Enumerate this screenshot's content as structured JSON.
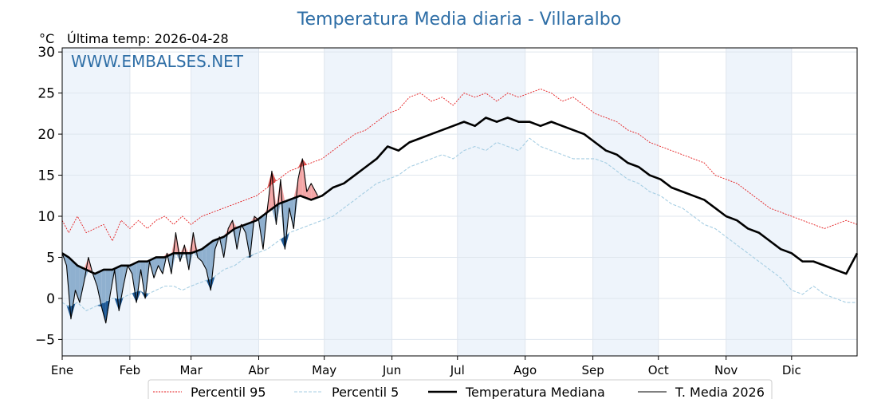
{
  "chart_data": {
    "type": "line",
    "title": "Temperatura Media diaria - Villaralbo",
    "unit": "°C",
    "last_temp_label": "Última temp: 2026-04-28",
    "watermark": "WWW.EMBALSES.NET",
    "ylim": [
      -7,
      30.5
    ],
    "xlim": [
      1,
      365
    ],
    "yticks": [
      {
        "value": 30,
        "label": "30"
      },
      {
        "value": 25,
        "label": "25"
      },
      {
        "value": 20,
        "label": "20"
      },
      {
        "value": 15,
        "label": "15"
      },
      {
        "value": 10,
        "label": "10"
      },
      {
        "value": 5,
        "label": "5"
      },
      {
        "value": 0,
        "label": "0"
      },
      {
        "value": -5,
        "label": "−5"
      }
    ],
    "months": [
      {
        "label": "Ene",
        "day": 1
      },
      {
        "label": "Feb",
        "day": 32
      },
      {
        "label": "Mar",
        "day": 60
      },
      {
        "label": "Abr",
        "day": 91
      },
      {
        "label": "May",
        "day": 121
      },
      {
        "label": "Jun",
        "day": 152
      },
      {
        "label": "Jul",
        "day": 182
      },
      {
        "label": "Ago",
        "day": 213
      },
      {
        "label": "Sep",
        "day": 244
      },
      {
        "label": "Oct",
        "day": 274
      },
      {
        "label": "Nov",
        "day": 305
      },
      {
        "label": "Dic",
        "day": 335
      }
    ],
    "shaded_months": [
      "Ene",
      "Mar",
      "May",
      "Jul",
      "Sep",
      "Nov"
    ],
    "grid": true,
    "legend_position": "bottom-center",
    "colors": {
      "p95": "#e41a1c",
      "p5": "#a6cee3",
      "median": "#000000",
      "current": "#000000",
      "above": "#f4a6a6",
      "below": "#8fb0cf",
      "below_p5": "#1f5a96",
      "above_p95": "#d9534f",
      "band": "#eef4fb",
      "title": "#2e6ea6"
    },
    "series": [
      {
        "key": "p95",
        "name": "Percentil 95",
        "style": "dotted",
        "x": [
          1,
          4,
          8,
          12,
          16,
          20,
          24,
          28,
          32,
          36,
          40,
          44,
          48,
          52,
          56,
          60,
          65,
          70,
          75,
          80,
          85,
          90,
          95,
          100,
          105,
          110,
          115,
          120,
          125,
          130,
          135,
          140,
          145,
          150,
          155,
          160,
          165,
          170,
          175,
          180,
          185,
          190,
          195,
          200,
          205,
          210,
          215,
          220,
          225,
          230,
          235,
          240,
          245,
          250,
          255,
          260,
          265,
          270,
          275,
          280,
          285,
          290,
          295,
          300,
          305,
          310,
          315,
          320,
          325,
          330,
          335,
          340,
          345,
          350,
          355,
          360,
          365
        ],
        "values": [
          9.5,
          8.0,
          10.0,
          8.0,
          8.5,
          9.0,
          7.0,
          9.5,
          8.5,
          9.5,
          8.5,
          9.5,
          10.0,
          9.0,
          10.0,
          9.0,
          10.0,
          10.5,
          11.0,
          11.5,
          12.0,
          12.5,
          13.5,
          14.5,
          15.5,
          16.0,
          16.5,
          17.0,
          18.0,
          19.0,
          20.0,
          20.5,
          21.5,
          22.5,
          23.0,
          24.5,
          25.0,
          24.0,
          24.5,
          23.5,
          25.0,
          24.5,
          25.0,
          24.0,
          25.0,
          24.5,
          25.0,
          25.5,
          25.0,
          24.0,
          24.5,
          23.5,
          22.5,
          22.0,
          21.5,
          20.5,
          20.0,
          19.0,
          18.5,
          18.0,
          17.5,
          17.0,
          16.5,
          15.0,
          14.5,
          14.0,
          13.0,
          12.0,
          11.0,
          10.5,
          10.0,
          9.5,
          9.0,
          8.5,
          9.0,
          9.5,
          9.0
        ]
      },
      {
        "key": "p5",
        "name": "Percentil 5",
        "style": "dashed",
        "x": [
          1,
          4,
          8,
          12,
          16,
          20,
          24,
          28,
          32,
          36,
          40,
          44,
          48,
          52,
          56,
          60,
          65,
          70,
          75,
          80,
          85,
          90,
          95,
          100,
          105,
          110,
          115,
          120,
          125,
          130,
          135,
          140,
          145,
          150,
          155,
          160,
          165,
          170,
          175,
          180,
          185,
          190,
          195,
          200,
          205,
          210,
          215,
          220,
          225,
          230,
          235,
          240,
          245,
          250,
          255,
          260,
          265,
          270,
          275,
          280,
          285,
          290,
          295,
          300,
          305,
          310,
          315,
          320,
          325,
          330,
          335,
          340,
          345,
          350,
          355,
          360,
          365
        ],
        "values": [
          -0.5,
          -1.0,
          -0.5,
          -1.5,
          -1.0,
          -0.5,
          0.0,
          0.0,
          0.5,
          1.0,
          0.5,
          1.0,
          1.5,
          1.5,
          1.0,
          1.5,
          2.0,
          2.5,
          3.5,
          4.0,
          5.0,
          5.5,
          6.0,
          7.0,
          8.0,
          8.5,
          9.0,
          9.5,
          10.0,
          11.0,
          12.0,
          13.0,
          14.0,
          14.5,
          15.0,
          16.0,
          16.5,
          17.0,
          17.5,
          17.0,
          18.0,
          18.5,
          18.0,
          19.0,
          18.5,
          18.0,
          19.5,
          18.5,
          18.0,
          17.5,
          17.0,
          17.0,
          17.0,
          16.5,
          15.5,
          14.5,
          14.0,
          13.0,
          12.5,
          11.5,
          11.0,
          10.0,
          9.0,
          8.5,
          7.5,
          6.5,
          5.5,
          4.5,
          3.5,
          2.5,
          1.0,
          0.5,
          1.5,
          0.5,
          0.0,
          -0.5,
          -0.5
        ]
      },
      {
        "key": "median",
        "name": "Temperatura Mediana",
        "style": "solid-thick",
        "x": [
          1,
          4,
          8,
          12,
          16,
          20,
          24,
          28,
          32,
          36,
          40,
          44,
          48,
          52,
          56,
          60,
          65,
          70,
          75,
          80,
          85,
          90,
          95,
          100,
          105,
          110,
          115,
          120,
          125,
          130,
          135,
          140,
          145,
          150,
          155,
          160,
          165,
          170,
          175,
          180,
          185,
          190,
          195,
          200,
          205,
          210,
          215,
          220,
          225,
          230,
          235,
          240,
          245,
          250,
          255,
          260,
          265,
          270,
          275,
          280,
          285,
          290,
          295,
          300,
          305,
          310,
          315,
          320,
          325,
          330,
          335,
          340,
          345,
          350,
          355,
          360,
          365
        ],
        "values": [
          5.5,
          5.0,
          4.0,
          3.5,
          3.0,
          3.5,
          3.5,
          4.0,
          4.0,
          4.5,
          4.5,
          5.0,
          5.0,
          5.5,
          5.5,
          5.5,
          6.0,
          7.0,
          7.5,
          8.5,
          9.0,
          9.5,
          10.5,
          11.5,
          12.0,
          12.5,
          12.0,
          12.5,
          13.5,
          14.0,
          15.0,
          16.0,
          17.0,
          18.5,
          18.0,
          19.0,
          19.5,
          20.0,
          20.5,
          21.0,
          21.5,
          21.0,
          22.0,
          21.5,
          22.0,
          21.5,
          21.5,
          21.0,
          21.5,
          21.0,
          20.5,
          20.0,
          19.0,
          18.0,
          17.5,
          16.5,
          16.0,
          15.0,
          14.5,
          13.5,
          13.0,
          12.5,
          12.0,
          11.0,
          10.0,
          9.5,
          8.5,
          8.0,
          7.0,
          6.0,
          5.5,
          4.5,
          4.5,
          4.0,
          3.5,
          3.0,
          5.5
        ]
      },
      {
        "key": "current",
        "name": "T. Media 2026",
        "style": "solid-thin",
        "x": [
          1,
          3,
          5,
          7,
          9,
          11,
          13,
          15,
          17,
          19,
          21,
          23,
          25,
          27,
          29,
          31,
          33,
          35,
          37,
          39,
          41,
          43,
          45,
          47,
          49,
          51,
          53,
          55,
          57,
          59,
          61,
          63,
          65,
          67,
          69,
          71,
          73,
          75,
          77,
          79,
          81,
          83,
          85,
          87,
          89,
          91,
          93,
          95,
          97,
          99,
          101,
          103,
          105,
          107,
          109,
          111,
          113,
          115,
          118
        ],
        "values": [
          5.5,
          4.0,
          -2.5,
          1.0,
          -0.5,
          2.0,
          5.0,
          3.0,
          1.5,
          -1.0,
          -3.0,
          0.5,
          3.5,
          -1.5,
          1.5,
          4.0,
          3.0,
          -0.5,
          3.5,
          0.0,
          4.5,
          2.5,
          4.0,
          3.0,
          5.5,
          3.0,
          8.0,
          4.5,
          6.5,
          3.5,
          8.0,
          5.0,
          4.5,
          3.5,
          1.0,
          6.0,
          7.5,
          5.0,
          8.5,
          9.5,
          6.0,
          9.0,
          8.0,
          5.0,
          10.0,
          9.5,
          6.0,
          11.0,
          15.5,
          9.0,
          14.5,
          6.0,
          11.0,
          8.5,
          14.5,
          17.0,
          13.0,
          14.0,
          12.5
        ]
      }
    ]
  }
}
